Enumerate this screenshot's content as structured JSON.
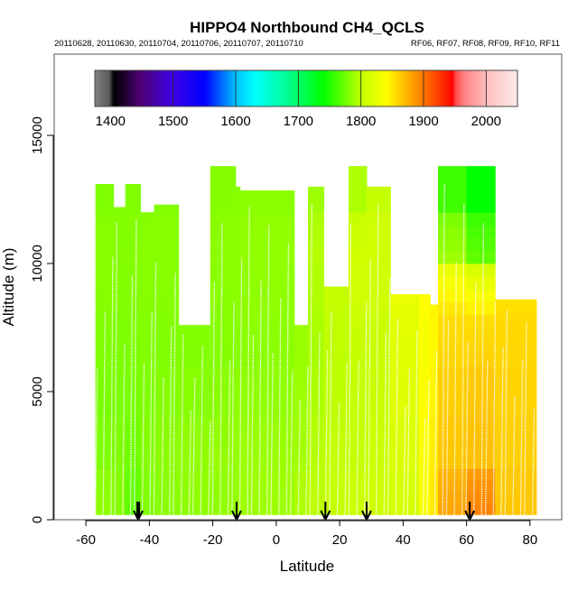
{
  "chart_data": {
    "type": "heatmap",
    "title": "HIPPO4 Northbound CH4_QCLS",
    "subtitle_left": "20110628, 20110630, 20110704, 20110706, 20110707, 20110710",
    "subtitle_right": "RF06, RF07, RF08, RF09, RF10, RF11",
    "xlabel": "Latitude",
    "ylabel": "Altitude (m)",
    "xlim": [
      -70,
      90
    ],
    "ylim": [
      0,
      18170
    ],
    "xticks": [
      -60,
      -40,
      -20,
      0,
      20,
      40,
      60,
      80
    ],
    "yticks": [
      0,
      5000,
      10000,
      15000
    ],
    "colorbar": {
      "range": [
        1375,
        2050
      ],
      "ticks": [
        1400,
        1500,
        1600,
        1700,
        1800,
        1900,
        2000
      ]
    },
    "arrows_latitude": [
      -43.5,
      -12.5,
      15.5,
      28.5,
      61
    ],
    "altitude_bin_m": 2000,
    "curtain": [
      {
        "lat": [
          -57,
          -51.3
        ],
        "top": 13100,
        "values": [
          1785,
          1780,
          1778,
          1780,
          1782,
          1783,
          1780
        ]
      },
      {
        "lat": [
          -51.3,
          -47.6
        ],
        "top": 12200,
        "values": [
          1782,
          1780,
          1778,
          1779,
          1781,
          1782,
          1780
        ]
      },
      {
        "lat": [
          -47.6,
          -42.8
        ],
        "top": 13100,
        "values": [
          1770,
          1775,
          1778,
          1779,
          1781,
          1782,
          1780
        ]
      },
      {
        "lat": [
          -42.8,
          -38.5
        ],
        "top": 12000,
        "values": [
          1780,
          1782,
          1780,
          1781,
          1782,
          1783,
          1780
        ]
      },
      {
        "lat": [
          -38.5,
          -30.8
        ],
        "top": 12300,
        "values": [
          1783,
          1784,
          1782,
          1780,
          1782,
          1783,
          1781
        ]
      },
      {
        "lat": [
          -30.8,
          -20.8
        ],
        "top": 7600,
        "values": [
          1785,
          1786,
          1783,
          1781,
          1782,
          1783,
          1781
        ]
      },
      {
        "lat": [
          -20.8,
          -12.8
        ],
        "top": 13800,
        "values": [
          1786,
          1787,
          1784,
          1782,
          1783,
          1784,
          1782
        ]
      },
      {
        "lat": [
          -12.8,
          -11.4
        ],
        "top": 13000,
        "values": [
          1788,
          1787,
          1785,
          1783,
          1784,
          1785,
          1783
        ]
      },
      {
        "lat": [
          -11.4,
          5.7
        ],
        "top": 12850,
        "values": [
          1790,
          1789,
          1786,
          1784,
          1785,
          1786,
          1784
        ]
      },
      {
        "lat": [
          5.7,
          10
        ],
        "top": 7600,
        "values": [
          1795,
          1792,
          1790,
          1788,
          1788,
          1788,
          1786
        ]
      },
      {
        "lat": [
          10,
          15
        ],
        "top": 13000,
        "values": [
          1800,
          1798,
          1795,
          1793,
          1795,
          1797,
          1790
        ]
      },
      {
        "lat": [
          15,
          22.8
        ],
        "top": 9100,
        "values": [
          1805,
          1803,
          1800,
          1800,
          1803,
          1805,
          1800
        ]
      },
      {
        "lat": [
          22.8,
          28.5
        ],
        "top": 13800,
        "values": [
          1808,
          1805,
          1803,
          1805,
          1810,
          1812,
          1795
        ]
      },
      {
        "lat": [
          28.5,
          36
        ],
        "top": 13000,
        "values": [
          1810,
          1808,
          1806,
          1806,
          1810,
          1812,
          1805
        ]
      },
      {
        "lat": [
          36,
          45
        ],
        "top": 8800,
        "values": [
          1815,
          1818,
          1820,
          1822,
          1825,
          1830,
          1820
        ]
      },
      {
        "lat": [
          45,
          48.5
        ],
        "top": 8800,
        "values": [
          1835,
          1838,
          1840,
          1835,
          1840,
          1840,
          1830
        ]
      },
      {
        "lat": [
          48.5,
          51
        ],
        "top": 8400,
        "values": [
          1850,
          1848,
          1845,
          1842,
          1845,
          1840,
          1830
        ]
      },
      {
        "lat": [
          51,
          60
        ],
        "top": 13800,
        "values": [
          1880,
          1865,
          1862,
          1858,
          1850,
          1790,
          1760
        ]
      },
      {
        "lat": [
          60,
          69
        ],
        "top": 13800,
        "values": [
          1895,
          1868,
          1865,
          1860,
          1845,
          1770,
          1740
        ]
      },
      {
        "lat": [
          69,
          82
        ],
        "top": 8600,
        "values": [
          1865,
          1862,
          1860,
          1858,
          1855,
          1850,
          1840
        ]
      }
    ]
  }
}
